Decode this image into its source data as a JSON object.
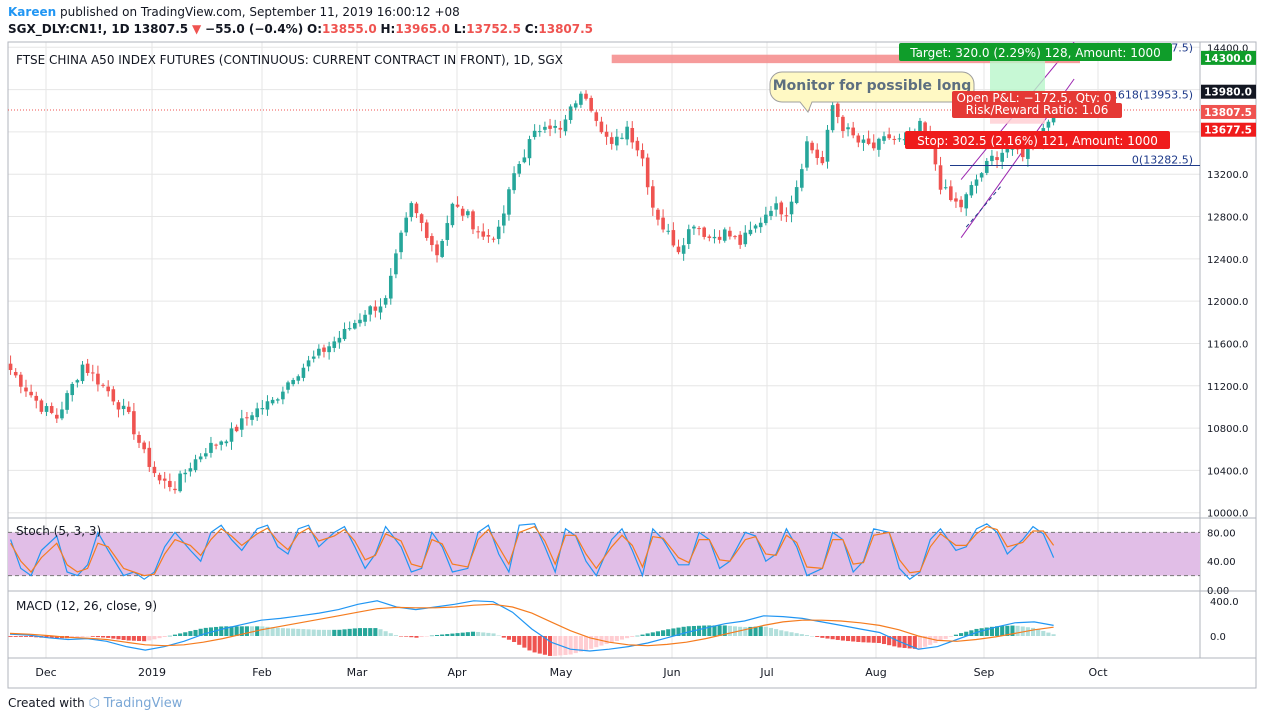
{
  "header": {
    "author": "Kareen",
    "published": "published on TradingView.com, September 11, 2019 16:00:12 +08",
    "symbol": "SGX_DLY:CN1!, 1D",
    "last": "13807.5",
    "change": "−55.0 (−0.4%)",
    "o_label": "O:",
    "o": "13855.0",
    "h_label": "H:",
    "h": "13965.0",
    "l_label": "L:",
    "l": "13752.5",
    "c_label": "C:",
    "c": "13807.5"
  },
  "footer": {
    "created_with": "Created with",
    "brand": "TradingView"
  },
  "colors": {
    "up": "#26a69a",
    "down": "#ef5350",
    "grid": "#e6e6e6",
    "stoch_k": "#2196f3",
    "stoch_d": "#f57c1f",
    "stoch_band": "#e1bee7"
  },
  "chart_data": [
    {
      "type": "candlestick",
      "title": "FTSE CHINA A50 INDEX FUTURES (CONTINUOUS: CURRENT CONTRACT IN FRONT), 1D, SGX",
      "ylim": [
        9950,
        14450
      ],
      "y_ticks": [
        10000,
        10400,
        10800,
        11200,
        11600,
        12000,
        12400,
        12800,
        13200,
        13600,
        14000,
        14400
      ],
      "y_tick_labels": [
        "10000.0",
        "10400.0",
        "10800.0",
        "11200.0",
        "11600.0",
        "12000.0",
        "12400.0",
        "12800.0",
        "13200.0",
        "13600.0",
        "14000.0",
        "14400.0"
      ],
      "x_labels": [
        "Dec",
        "2019",
        "Feb",
        "Mar",
        "Apr",
        "May",
        "Jun",
        "Jul",
        "Aug",
        "Sep",
        "Oct"
      ],
      "close_path": [
        [
          0,
          11350
        ],
        [
          6,
          11000
        ],
        [
          9,
          10900
        ],
        [
          14,
          11400
        ],
        [
          19,
          11150
        ],
        [
          23,
          10900
        ],
        [
          26,
          10550
        ],
        [
          29,
          10300
        ],
        [
          32,
          10250
        ],
        [
          35,
          10450
        ],
        [
          38,
          10600
        ],
        [
          43,
          10750
        ],
        [
          47,
          10950
        ],
        [
          51,
          11050
        ],
        [
          55,
          11300
        ],
        [
          60,
          11500
        ],
        [
          65,
          11700
        ],
        [
          69,
          11900
        ],
        [
          73,
          12000
        ],
        [
          76,
          12600
        ],
        [
          78,
          12900
        ],
        [
          81,
          12650
        ],
        [
          83,
          12450
        ],
        [
          86,
          12900
        ],
        [
          89,
          12800
        ],
        [
          92,
          12600
        ],
        [
          95,
          12650
        ],
        [
          98,
          13200
        ],
        [
          101,
          13500
        ],
        [
          104,
          13700
        ],
        [
          107,
          13600
        ],
        [
          110,
          13900
        ],
        [
          112,
          13950
        ],
        [
          114,
          13750
        ],
        [
          117,
          13450
        ],
        [
          120,
          13650
        ],
        [
          123,
          13350
        ],
        [
          125,
          12900
        ],
        [
          127,
          12700
        ],
        [
          130,
          12500
        ],
        [
          133,
          12750
        ],
        [
          136,
          12600
        ],
        [
          139,
          12650
        ],
        [
          142,
          12550
        ],
        [
          145,
          12700
        ],
        [
          148,
          12900
        ],
        [
          151,
          12850
        ],
        [
          153,
          13100
        ],
        [
          155,
          13500
        ],
        [
          158,
          13300
        ],
        [
          160,
          13850
        ],
        [
          162,
          13650
        ],
        [
          165,
          13500
        ],
        [
          168,
          13450
        ],
        [
          171,
          13550
        ],
        [
          174,
          13500
        ],
        [
          177,
          13650
        ],
        [
          179,
          13500
        ],
        [
          181,
          13100
        ],
        [
          183,
          12950
        ],
        [
          185,
          12900
        ],
        [
          188,
          13150
        ],
        [
          191,
          13350
        ],
        [
          194,
          13450
        ],
        [
          197,
          13400
        ],
        [
          200,
          13550
        ],
        [
          203,
          13800
        ]
      ],
      "current_price": 13807.5,
      "price_badges": [
        "14300.0",
        "13980.0",
        "13807.5",
        "13677.5"
      ],
      "fib_labels": [
        ".618(13953.5)",
        "0(13282.5)",
        "7.5)"
      ],
      "position": {
        "target_label": "Target: 320.0 (2.29%) 128, Amount: 1000",
        "stop_label": "Stop: 302.5 (2.16%) 121, Amount: 1000",
        "open_pl_label": "Open P&L: −172.5, Qty: 0",
        "rr_label": "Risk/Reward Ratio: 1.06",
        "target_price": 14300.0,
        "stop_price": 13677.5
      },
      "resistance_zone": [
        14250,
        14330
      ],
      "annotation": "Monitor for possible long",
      "channel": {
        "x_start": 185,
        "x_end": 203,
        "lower_start": 12600,
        "lower_end": 13900,
        "upper_start": 13150,
        "upper_end": 14300
      }
    },
    {
      "type": "line",
      "title": "Stoch (5, 3, 3)",
      "ylim": [
        0,
        100
      ],
      "y_ticks": [
        0,
        40,
        80
      ],
      "y_tick_labels": [
        "0.00",
        "40.00",
        "80.00"
      ],
      "band": [
        20,
        80
      ],
      "series": [
        {
          "values": [
            70,
            30,
            20,
            55,
            75,
            25,
            20,
            35,
            80,
            55,
            20,
            25,
            15,
            25,
            60,
            80,
            55,
            40,
            80,
            90,
            70,
            55,
            85,
            90,
            60,
            50,
            85,
            90,
            60,
            80,
            88,
            60,
            30,
            50,
            88,
            60,
            25,
            30,
            80,
            60,
            25,
            30,
            80,
            90,
            50,
            25,
            90,
            92,
            60,
            25,
            85,
            75,
            40,
            20,
            70,
            85,
            55,
            20,
            85,
            70,
            35,
            35,
            80,
            70,
            30,
            40,
            80,
            75,
            40,
            50,
            85,
            60,
            20,
            30,
            80,
            70,
            25,
            40,
            85,
            80,
            30,
            15,
            25,
            70,
            85,
            55,
            60,
            85,
            92,
            80,
            50,
            70,
            88,
            78,
            45
          ]
        },
        {
          "values": [
            65,
            40,
            25,
            45,
            65,
            35,
            25,
            30,
            65,
            60,
            30,
            25,
            20,
            22,
            50,
            70,
            62,
            48,
            70,
            85,
            75,
            62,
            78,
            86,
            68,
            56,
            78,
            86,
            68,
            75,
            84,
            68,
            42,
            48,
            78,
            68,
            36,
            32,
            70,
            64,
            36,
            32,
            70,
            84,
            60,
            36,
            80,
            88,
            68,
            36,
            76,
            76,
            50,
            30,
            60,
            76,
            62,
            32,
            74,
            72,
            45,
            38,
            70,
            70,
            42,
            40,
            70,
            74,
            50,
            48,
            76,
            66,
            32,
            30,
            70,
            70,
            36,
            38,
            76,
            80,
            42,
            24,
            26,
            60,
            78,
            62,
            62,
            78,
            88,
            84,
            60,
            66,
            82,
            82,
            62
          ]
        }
      ]
    },
    {
      "type": "line+bar",
      "title": "MACD (12, 26, close, 9)",
      "ylim": [
        -250,
        500
      ],
      "y_ticks": [
        0,
        400
      ],
      "y_tick_labels": [
        "0.0",
        "400.0"
      ],
      "macd": [
        20,
        10,
        -20,
        -40,
        -30,
        -60,
        -120,
        -160,
        -120,
        -60,
        20,
        80,
        130,
        180,
        200,
        230,
        260,
        300,
        360,
        400,
        330,
        300,
        330,
        360,
        400,
        390,
        270,
        80,
        -70,
        -150,
        -170,
        -150,
        -120,
        -80,
        -20,
        40,
        90,
        140,
        170,
        230,
        220,
        200,
        160,
        120,
        80,
        40,
        -60,
        -150,
        -120,
        -40,
        40,
        100,
        150,
        160,
        120
      ],
      "signal": [
        30,
        20,
        5,
        -15,
        -25,
        -40,
        -70,
        -100,
        -110,
        -100,
        -70,
        -30,
        20,
        70,
        110,
        150,
        190,
        230,
        270,
        310,
        325,
        320,
        320,
        330,
        350,
        360,
        330,
        260,
        160,
        60,
        -20,
        -70,
        -100,
        -110,
        -95,
        -70,
        -30,
        20,
        70,
        120,
        160,
        180,
        180,
        170,
        150,
        120,
        70,
        0,
        -50,
        -60,
        -40,
        -10,
        30,
        70,
        100
      ]
    }
  ]
}
